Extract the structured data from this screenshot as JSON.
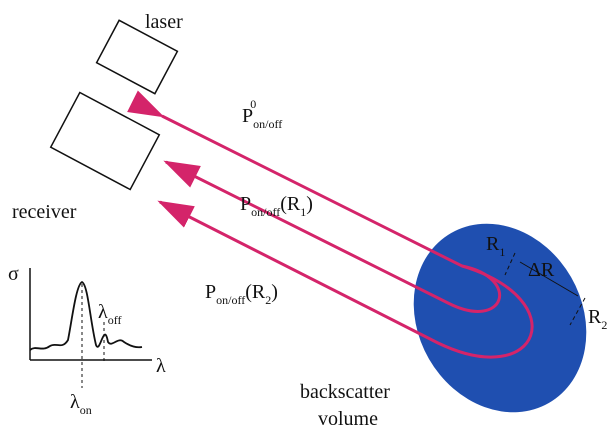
{
  "labels": {
    "laser": "laser",
    "receiver": "receiver",
    "backscatter": "backscatter",
    "volume": "volume"
  },
  "beams": [
    {
      "symbol": "P",
      "subscript": "on/off",
      "superscript": "0"
    },
    {
      "symbol": "P",
      "subscript": "on/off",
      "argument": "(R",
      "argument_subscript": "1",
      "close": ")"
    },
    {
      "symbol": "P",
      "subscript": "on/off",
      "argument": "(R",
      "argument_subscript": "2",
      "close": ")"
    }
  ],
  "range": {
    "r1": "R",
    "r1_subscript": "1",
    "delta": "ΔR",
    "r2": "R",
    "r2_subscript": "2"
  },
  "inset": {
    "y_label": "σ",
    "x_label": "λ",
    "lambda_on": "λ",
    "lambda_on_subscript": "on",
    "lambda_off": "λ",
    "lambda_off_subscript": "off"
  }
}
